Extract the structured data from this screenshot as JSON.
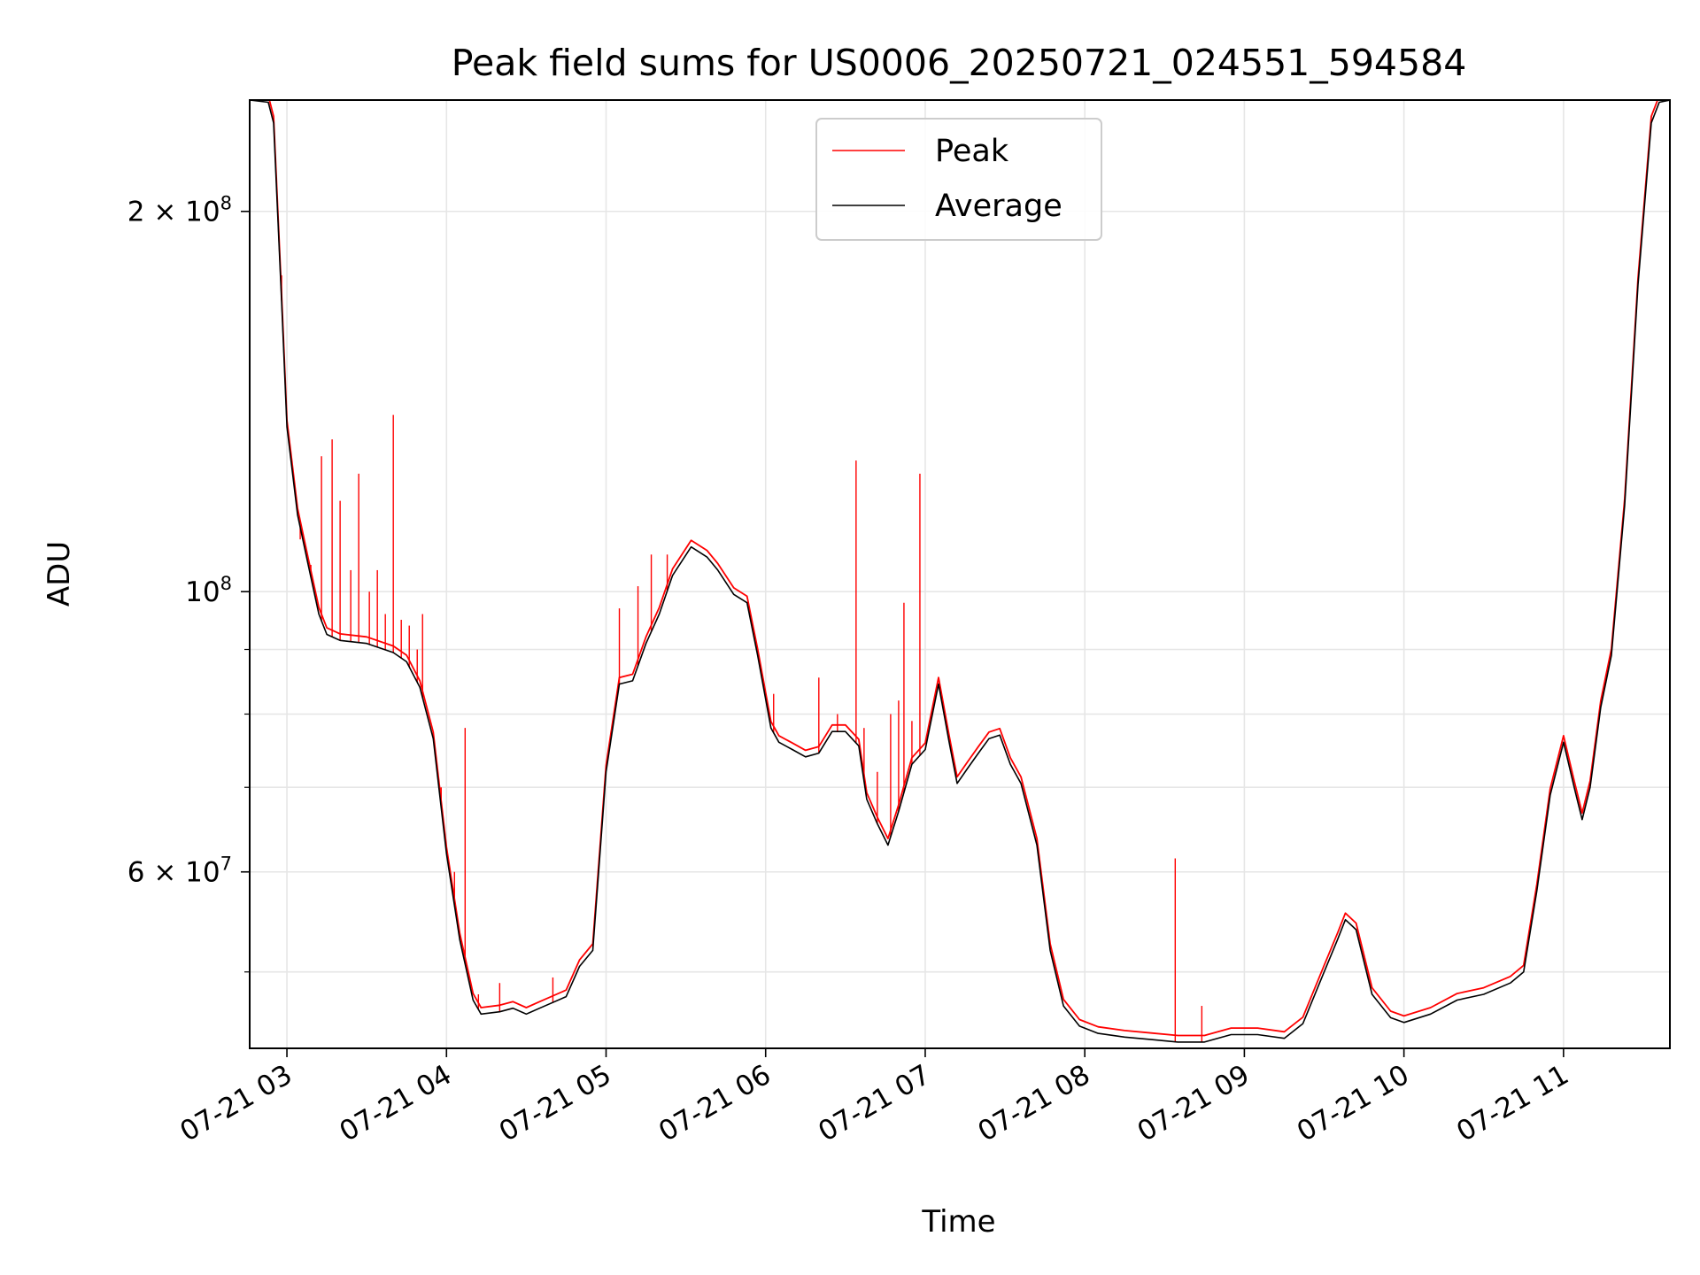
{
  "chart_data": {
    "type": "line",
    "title": "Peak field sums for US0006_20250721_024551_594584",
    "xlabel": "Time",
    "ylabel": "ADU",
    "yscale": "log",
    "xlim": [
      "2025-07-21 02:46",
      "2025-07-21 11:40"
    ],
    "ylim": [
      43500000,
      245000000
    ],
    "grid": true,
    "legend_position": "top-center",
    "x_ticks": [
      {
        "value": "2025-07-21 03:00",
        "label": "07-21 03"
      },
      {
        "value": "2025-07-21 04:00",
        "label": "07-21 04"
      },
      {
        "value": "2025-07-21 05:00",
        "label": "07-21 05"
      },
      {
        "value": "2025-07-21 06:00",
        "label": "07-21 06"
      },
      {
        "value": "2025-07-21 07:00",
        "label": "07-21 07"
      },
      {
        "value": "2025-07-21 08:00",
        "label": "07-21 08"
      },
      {
        "value": "2025-07-21 09:00",
        "label": "07-21 09"
      },
      {
        "value": "2025-07-21 10:00",
        "label": "07-21 10"
      },
      {
        "value": "2025-07-21 11:00",
        "label": "07-21 11"
      }
    ],
    "y_major_ticks": [
      {
        "value": 100000000,
        "base": "10",
        "exp": "8"
      },
      {
        "value": 200000000,
        "base": "2 × 10",
        "exp": "8"
      },
      {
        "value": 60000000,
        "base": "6 × 10",
        "exp": "7"
      }
    ],
    "y_minor_ticks": [
      50000000,
      70000000,
      80000000,
      90000000
    ],
    "series": [
      {
        "name": "Average",
        "color": "#000000",
        "points": [
          [
            "2025-07-21 02:46",
            245000000
          ],
          [
            "2025-07-21 02:53",
            244000000
          ],
          [
            "2025-07-21 02:55",
            235000000
          ],
          [
            "2025-07-21 02:58",
            170000000
          ],
          [
            "2025-07-21 03:00",
            135000000
          ],
          [
            "2025-07-21 03:04",
            115000000
          ],
          [
            "2025-07-21 03:08",
            105000000
          ],
          [
            "2025-07-21 03:12",
            96000000
          ],
          [
            "2025-07-21 03:15",
            92500000
          ],
          [
            "2025-07-21 03:20",
            91500000
          ],
          [
            "2025-07-21 03:30",
            91000000
          ],
          [
            "2025-07-21 03:40",
            89500000
          ],
          [
            "2025-07-21 03:45",
            88000000
          ],
          [
            "2025-07-21 03:50",
            84000000
          ],
          [
            "2025-07-21 03:55",
            76500000
          ],
          [
            "2025-07-21 04:00",
            62000000
          ],
          [
            "2025-07-21 04:05",
            53000000
          ],
          [
            "2025-07-21 04:10",
            47500000
          ],
          [
            "2025-07-21 04:13",
            46300000
          ],
          [
            "2025-07-21 04:20",
            46500000
          ],
          [
            "2025-07-21 04:25",
            46800000
          ],
          [
            "2025-07-21 04:30",
            46300000
          ],
          [
            "2025-07-21 04:35",
            46800000
          ],
          [
            "2025-07-21 04:45",
            47800000
          ],
          [
            "2025-07-21 04:50",
            50500000
          ],
          [
            "2025-07-21 04:55",
            52000000
          ],
          [
            "2025-07-21 05:00",
            72000000
          ],
          [
            "2025-07-21 05:05",
            84500000
          ],
          [
            "2025-07-21 05:10",
            85000000
          ],
          [
            "2025-07-21 05:15",
            91000000
          ],
          [
            "2025-07-21 05:20",
            96000000
          ],
          [
            "2025-07-21 05:25",
            103000000
          ],
          [
            "2025-07-21 05:32",
            108500000
          ],
          [
            "2025-07-21 05:38",
            106500000
          ],
          [
            "2025-07-21 05:42",
            104000000
          ],
          [
            "2025-07-21 05:48",
            99500000
          ],
          [
            "2025-07-21 05:53",
            98000000
          ],
          [
            "2025-07-21 05:57",
            89000000
          ],
          [
            "2025-07-21 06:02",
            78000000
          ],
          [
            "2025-07-21 06:05",
            76000000
          ],
          [
            "2025-07-21 06:10",
            75000000
          ],
          [
            "2025-07-21 06:15",
            74000000
          ],
          [
            "2025-07-21 06:20",
            74500000
          ],
          [
            "2025-07-21 06:25",
            77500000
          ],
          [
            "2025-07-21 06:30",
            77500000
          ],
          [
            "2025-07-21 06:35",
            75500000
          ],
          [
            "2025-07-21 06:38",
            68500000
          ],
          [
            "2025-07-21 06:42",
            65500000
          ],
          [
            "2025-07-21 06:46",
            63000000
          ],
          [
            "2025-07-21 06:50",
            67000000
          ],
          [
            "2025-07-21 06:55",
            73000000
          ],
          [
            "2025-07-21 07:00",
            75000000
          ],
          [
            "2025-07-21 07:05",
            84500000
          ],
          [
            "2025-07-21 07:09",
            76000000
          ],
          [
            "2025-07-21 07:12",
            70500000
          ],
          [
            "2025-07-21 07:16",
            72500000
          ],
          [
            "2025-07-21 07:20",
            74500000
          ],
          [
            "2025-07-21 07:24",
            76500000
          ],
          [
            "2025-07-21 07:28",
            77000000
          ],
          [
            "2025-07-21 07:32",
            73000000
          ],
          [
            "2025-07-21 07:36",
            70500000
          ],
          [
            "2025-07-21 07:42",
            63000000
          ],
          [
            "2025-07-21 07:47",
            52000000
          ],
          [
            "2025-07-21 07:52",
            47000000
          ],
          [
            "2025-07-21 07:58",
            45300000
          ],
          [
            "2025-07-21 08:05",
            44700000
          ],
          [
            "2025-07-21 08:15",
            44400000
          ],
          [
            "2025-07-21 08:25",
            44200000
          ],
          [
            "2025-07-21 08:35",
            44000000
          ],
          [
            "2025-07-21 08:45",
            44000000
          ],
          [
            "2025-07-21 08:55",
            44600000
          ],
          [
            "2025-07-21 09:05",
            44600000
          ],
          [
            "2025-07-21 09:15",
            44300000
          ],
          [
            "2025-07-21 09:22",
            45500000
          ],
          [
            "2025-07-21 09:30",
            50000000
          ],
          [
            "2025-07-21 09:35",
            53000000
          ],
          [
            "2025-07-21 09:38",
            55000000
          ],
          [
            "2025-07-21 09:42",
            54000000
          ],
          [
            "2025-07-21 09:48",
            48000000
          ],
          [
            "2025-07-21 09:55",
            46000000
          ],
          [
            "2025-07-21 10:00",
            45600000
          ],
          [
            "2025-07-21 10:10",
            46300000
          ],
          [
            "2025-07-21 10:20",
            47500000
          ],
          [
            "2025-07-21 10:30",
            48000000
          ],
          [
            "2025-07-21 10:40",
            49000000
          ],
          [
            "2025-07-21 10:45",
            50000000
          ],
          [
            "2025-07-21 10:50",
            58000000
          ],
          [
            "2025-07-21 10:55",
            69000000
          ],
          [
            "2025-07-21 11:00",
            76000000
          ],
          [
            "2025-07-21 11:04",
            70000000
          ],
          [
            "2025-07-21 11:07",
            66000000
          ],
          [
            "2025-07-21 11:10",
            70000000
          ],
          [
            "2025-07-21 11:14",
            81000000
          ],
          [
            "2025-07-21 11:18",
            89000000
          ],
          [
            "2025-07-21 11:23",
            117000000
          ],
          [
            "2025-07-21 11:28",
            175000000
          ],
          [
            "2025-07-21 11:33",
            235000000
          ],
          [
            "2025-07-21 11:36",
            244000000
          ],
          [
            "2025-07-21 11:40",
            245000000
          ]
        ]
      },
      {
        "name": "Peak",
        "color": "#ff0000",
        "spikes": [
          [
            "2025-07-21 02:58",
            178000000
          ],
          [
            "2025-07-21 03:05",
            110000000
          ],
          [
            "2025-07-21 03:09",
            105000000
          ],
          [
            "2025-07-21 03:13",
            128000000
          ],
          [
            "2025-07-21 03:17",
            132000000
          ],
          [
            "2025-07-21 03:20",
            118000000
          ],
          [
            "2025-07-21 03:24",
            104000000
          ],
          [
            "2025-07-21 03:27",
            124000000
          ],
          [
            "2025-07-21 03:31",
            100000000
          ],
          [
            "2025-07-21 03:34",
            104000000
          ],
          [
            "2025-07-21 03:37",
            96000000
          ],
          [
            "2025-07-21 03:40",
            138000000
          ],
          [
            "2025-07-21 03:43",
            95000000
          ],
          [
            "2025-07-21 03:46",
            94000000
          ],
          [
            "2025-07-21 03:49",
            90000000
          ],
          [
            "2025-07-21 03:51",
            96000000
          ],
          [
            "2025-07-21 03:58",
            70000000
          ],
          [
            "2025-07-21 04:03",
            60000000
          ],
          [
            "2025-07-21 04:07",
            78000000
          ],
          [
            "2025-07-21 04:12",
            48000000
          ],
          [
            "2025-07-21 04:20",
            49000000
          ],
          [
            "2025-07-21 04:40",
            49500000
          ],
          [
            "2025-07-21 05:05",
            97000000
          ],
          [
            "2025-07-21 05:12",
            101000000
          ],
          [
            "2025-07-21 05:17",
            107000000
          ],
          [
            "2025-07-21 05:23",
            107000000
          ],
          [
            "2025-07-21 06:03",
            83000000
          ],
          [
            "2025-07-21 06:20",
            85500000
          ],
          [
            "2025-07-21 06:27",
            80000000
          ],
          [
            "2025-07-21 06:34",
            127000000
          ],
          [
            "2025-07-21 06:37",
            78000000
          ],
          [
            "2025-07-21 06:42",
            72000000
          ],
          [
            "2025-07-21 06:47",
            80000000
          ],
          [
            "2025-07-21 06:50",
            82000000
          ],
          [
            "2025-07-21 06:52",
            98000000
          ],
          [
            "2025-07-21 06:55",
            79000000
          ],
          [
            "2025-07-21 06:58",
            124000000
          ],
          [
            "2025-07-21 08:34",
            61500000
          ],
          [
            "2025-07-21 08:44",
            47000000
          ]
        ]
      }
    ]
  }
}
